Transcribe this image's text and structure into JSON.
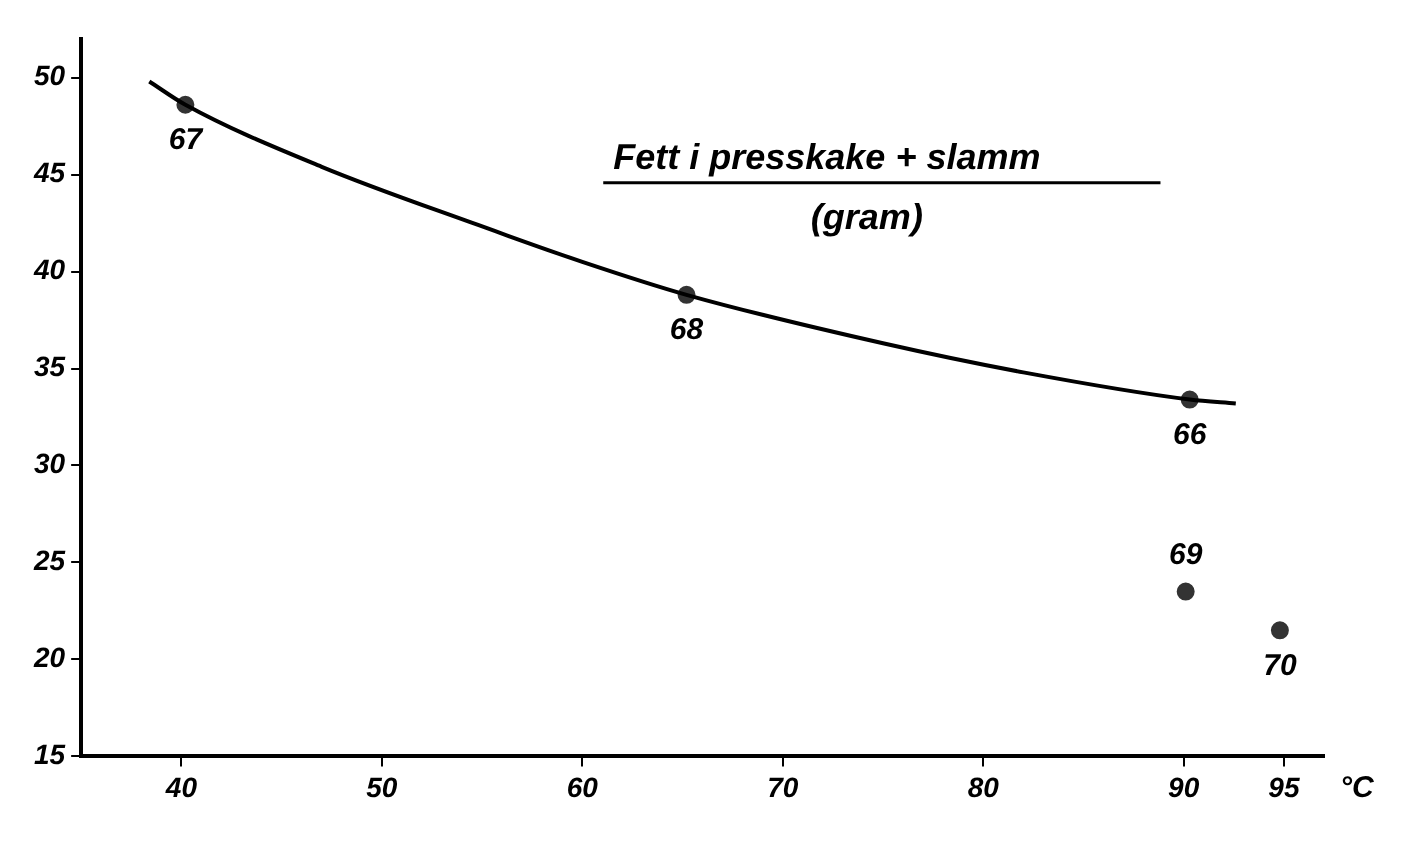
{
  "chart_data": {
    "type": "scatter",
    "title": "Fett i presskake + slamm",
    "subtitle": "(gram)",
    "xlabel": "°C",
    "xlim": [
      35,
      97
    ],
    "xticks": [
      40,
      50,
      60,
      70,
      80,
      90,
      95
    ],
    "ylim": [
      15,
      52
    ],
    "yticks": [
      15,
      20,
      25,
      30,
      35,
      40,
      45,
      50
    ],
    "grid": false,
    "legend": false,
    "series": [
      {
        "type": "line",
        "color": "#000000",
        "marker": "none",
        "x": [
          38.4,
          40.2,
          47,
          54.8,
          60,
          65.2,
          75,
          82,
          90.3,
          92.6
        ],
        "values": [
          49.8,
          48.6,
          45.4,
          42.4,
          40.5,
          38.8,
          36.3,
          34.8,
          33.4,
          33.2
        ]
      },
      {
        "color": "#333333",
        "marker": "circle",
        "x": [
          40.2,
          65.2,
          90.3,
          90.1,
          94.8
        ],
        "values": [
          48.6,
          38.8,
          33.4,
          23.5,
          21.5
        ]
      }
    ],
    "annotations": [
      {
        "text": "67",
        "x": 40.2,
        "y": 48.6
      },
      {
        "text": "68",
        "x": 65.2,
        "y": 38.8
      },
      {
        "text": "66",
        "x": 90.3,
        "y": 33.4
      },
      {
        "text": "69",
        "x": 90.1,
        "y": 23.5
      },
      {
        "text": "70",
        "x": 94.8,
        "y": 21.5
      }
    ]
  }
}
